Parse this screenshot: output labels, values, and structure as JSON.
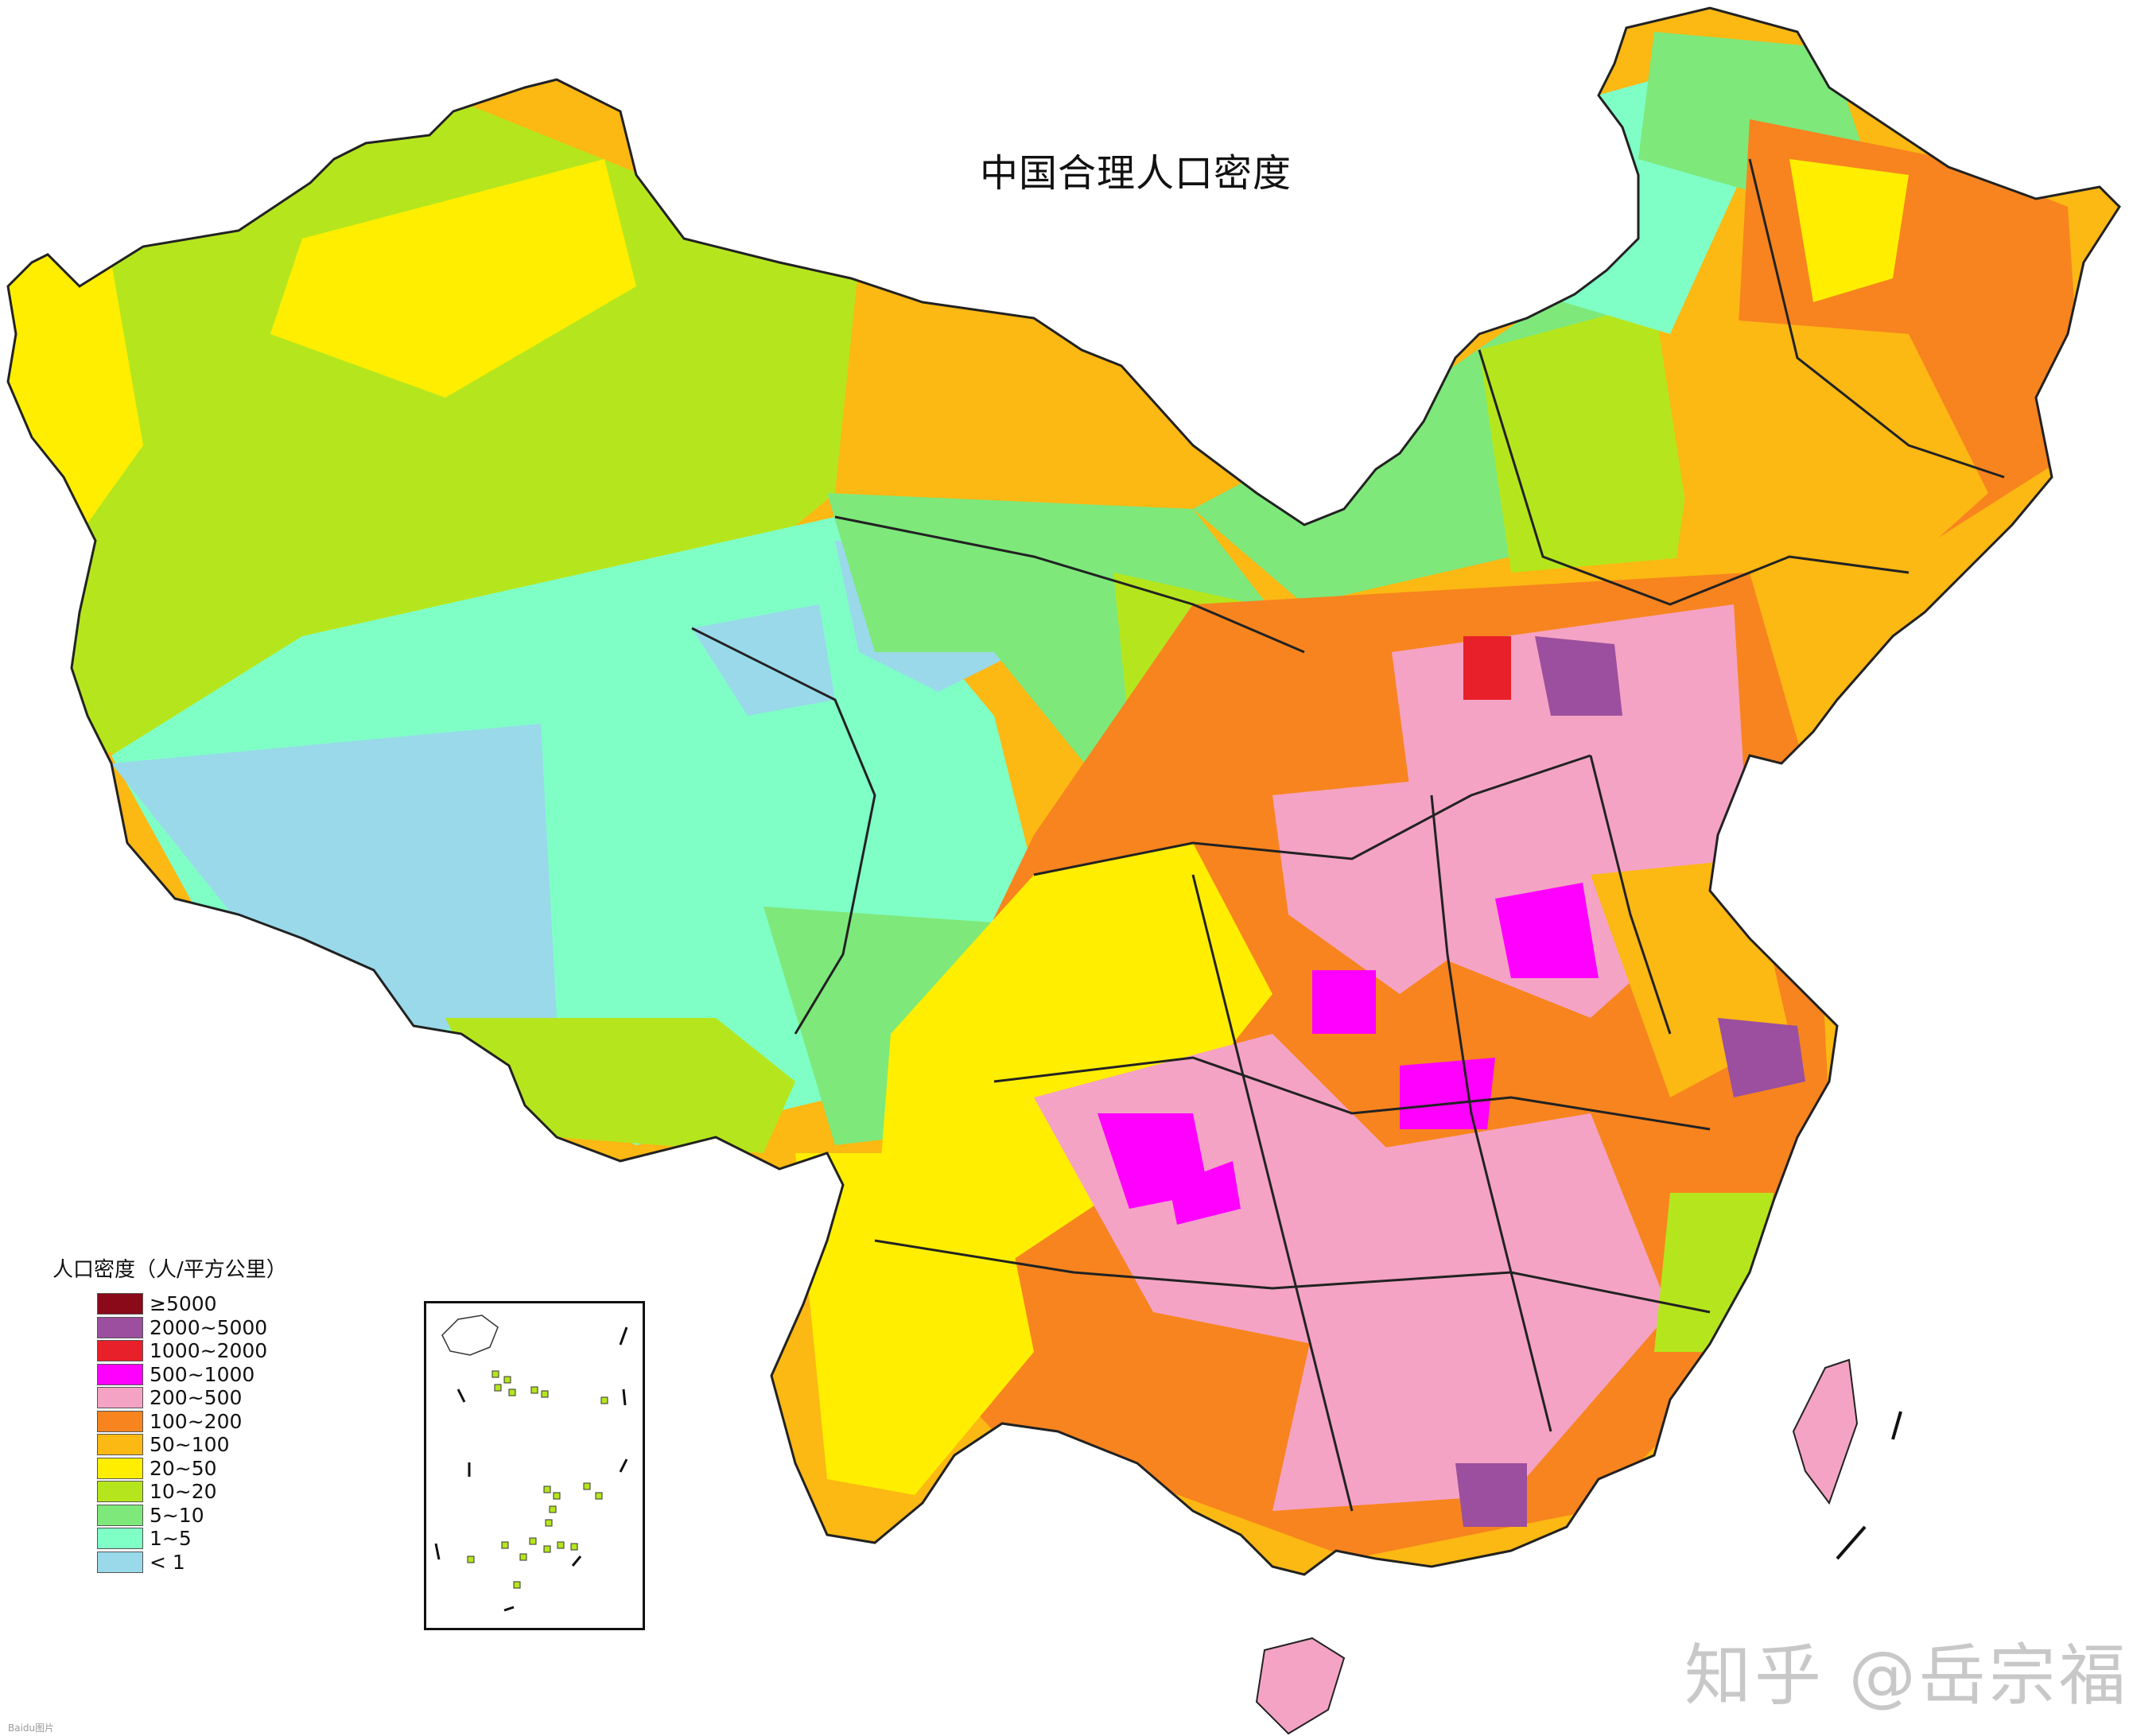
{
  "map": {
    "title": "中国合理人口密度",
    "legend": {
      "title": "人口密度（人/平方公里）",
      "items": [
        {
          "label": "≥5000",
          "color": "#8b0a1a"
        },
        {
          "label": "2000~5000",
          "color": "#9b4f9e"
        },
        {
          "label": "1000~2000",
          "color": "#e8202a"
        },
        {
          "label": "500~1000",
          "color": "#ff00ff"
        },
        {
          "label": "200~500",
          "color": "#f4a3c4"
        },
        {
          "label": "100~200",
          "color": "#f7841f"
        },
        {
          "label": "50~100",
          "color": "#fcb813"
        },
        {
          "label": "20~50",
          "color": "#ffee00"
        },
        {
          "label": "10~20",
          "color": "#b5e61d"
        },
        {
          "label": "5~10",
          "color": "#7ee87a"
        },
        {
          "label": "1~5",
          "color": "#7fffc6"
        },
        {
          "label": "< 1",
          "color": "#99d9ea"
        }
      ]
    },
    "watermark": "知乎 @岳宗福",
    "corner_mark": "Baidu图片"
  }
}
